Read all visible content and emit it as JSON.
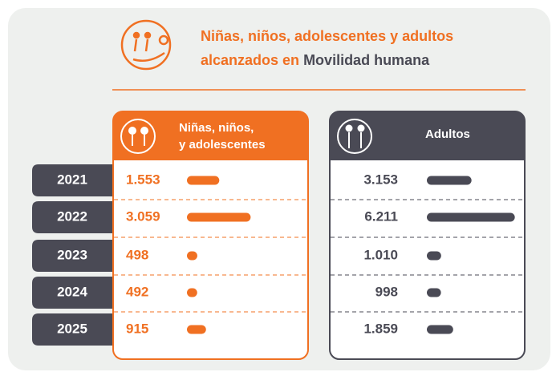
{
  "chart_data": {
    "type": "bar",
    "title": "Niñas, niños, adolescentes y adultos alcanzados en",
    "title_highlight": "Movilidad humana",
    "categories": [
      "2021",
      "2022",
      "2023",
      "2024",
      "2025"
    ],
    "series": [
      {
        "name": "Niñas, niños, y adolescentes",
        "color": "#f07022",
        "values": [
          1553,
          3059,
          498,
          492,
          915
        ],
        "value_labels": [
          "1.553",
          "3.059",
          "498",
          "492",
          "915"
        ],
        "xlim": [
          0,
          4700
        ]
      },
      {
        "name": "Adultos",
        "color": "#4a4a55",
        "values": [
          3153,
          6211,
          1010,
          998,
          1859
        ],
        "value_labels": [
          "3.153",
          "6.211",
          "1.010",
          "998",
          "1.859"
        ],
        "xlim": [
          0,
          6400
        ]
      }
    ]
  }
}
